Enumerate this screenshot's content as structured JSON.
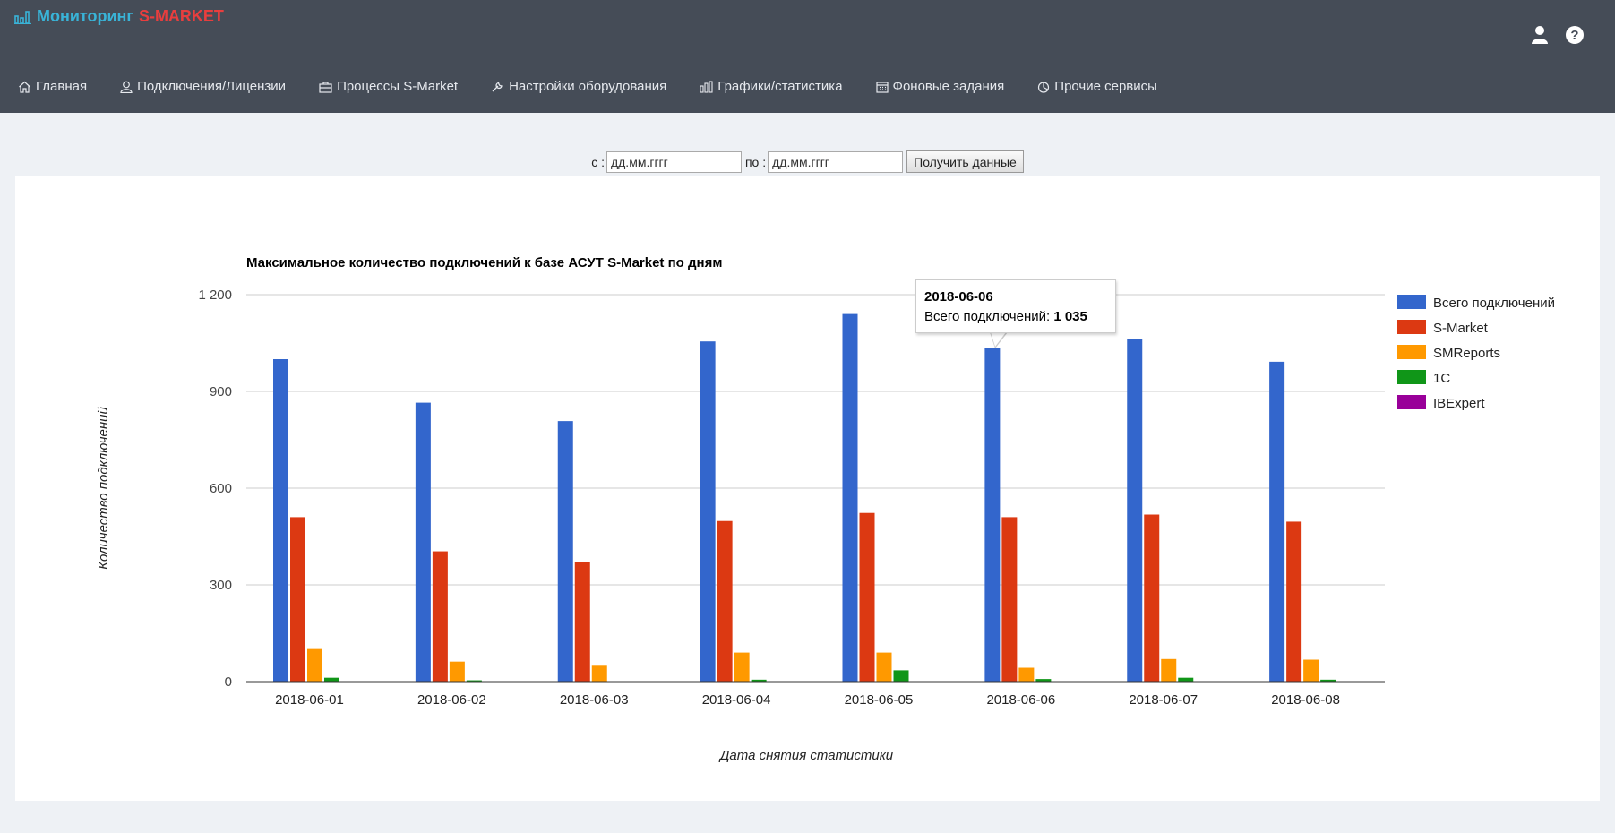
{
  "brand": {
    "title": "Мониторинг",
    "product": "S-MARKET"
  },
  "nav": {
    "items": [
      {
        "label": "Главная",
        "icon": "home-icon"
      },
      {
        "label": "Подключения/Лицензии",
        "icon": "user-icon"
      },
      {
        "label": "Процессы S-Market",
        "icon": "briefcase-icon"
      },
      {
        "label": "Настройки оборудования",
        "icon": "wrench-icon"
      },
      {
        "label": "Графики/статистика",
        "icon": "bar-chart-icon"
      },
      {
        "label": "Фоновые задания",
        "icon": "calendar-icon"
      },
      {
        "label": "Прочие сервисы",
        "icon": "pie-chart-icon"
      }
    ]
  },
  "header_icons": [
    "user-icon",
    "help-icon"
  ],
  "form": {
    "from_label": "с :",
    "from_placeholder": "дд.мм.гггг",
    "to_label": "по :",
    "to_placeholder": "дд.мм.гггг",
    "submit_label": "Получить данные"
  },
  "tooltip": {
    "date": "2018-06-06",
    "label": "Всего подключений:",
    "value": "1 035"
  },
  "chart_data": {
    "type": "bar",
    "title": "Максимальное количество подключений к базе АСУТ S-Market по дням",
    "xlabel": "Дата снятия статистики",
    "ylabel": "Количество подключений",
    "ylim": [
      0,
      1200
    ],
    "yticks": [
      0,
      300,
      600,
      900,
      1200
    ],
    "ytick_labels": [
      "0",
      "300",
      "600",
      "900",
      "1 200"
    ],
    "grid": true,
    "legend_position": "right",
    "categories": [
      "2018-06-01",
      "2018-06-02",
      "2018-06-03",
      "2018-06-04",
      "2018-06-05",
      "2018-06-06",
      "2018-06-07",
      "2018-06-08"
    ],
    "series": [
      {
        "name": "Всего подключений",
        "color": "#3366cc",
        "values": [
          1000,
          865,
          808,
          1055,
          1140,
          1035,
          1062,
          992
        ]
      },
      {
        "name": "S-Market",
        "color": "#dc3912",
        "values": [
          510,
          404,
          370,
          498,
          523,
          510,
          518,
          496
        ]
      },
      {
        "name": "SMReports",
        "color": "#ff9900",
        "values": [
          101,
          62,
          52,
          90,
          90,
          43,
          70,
          68
        ]
      },
      {
        "name": "1С",
        "color": "#109618",
        "values": [
          12,
          4,
          0,
          6,
          35,
          8,
          12,
          6
        ]
      },
      {
        "name": "IBExpert",
        "color": "#990099",
        "values": [
          0,
          0,
          0,
          0,
          0,
          0,
          0,
          0
        ]
      }
    ]
  }
}
